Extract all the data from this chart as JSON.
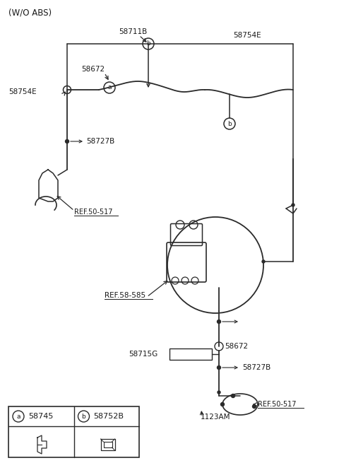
{
  "bg_color": "#ffffff",
  "line_color": "#2a2a2a",
  "text_color": "#1a1a1a",
  "labels": {
    "wo_abs": "(W/O ABS)",
    "58711B": "58711B",
    "58672_top": "58672",
    "58754E_left": "58754E",
    "58754E_right": "58754E",
    "58727B_top": "58727B",
    "REF_50_517_top": "REF.50-517",
    "REF_58_585": "REF.58-585",
    "58715G": "58715G",
    "58672_bottom": "58672",
    "58727B_bottom": "58727B",
    "REF_50_517_bottom": "REF.50-517",
    "1123AM": "1123AM",
    "legend_a_num": "58745",
    "legend_b_num": "58752B",
    "legend_a_letter": "a",
    "legend_b_letter": "b"
  },
  "figsize": [
    4.8,
    6.55
  ],
  "dpi": 100
}
